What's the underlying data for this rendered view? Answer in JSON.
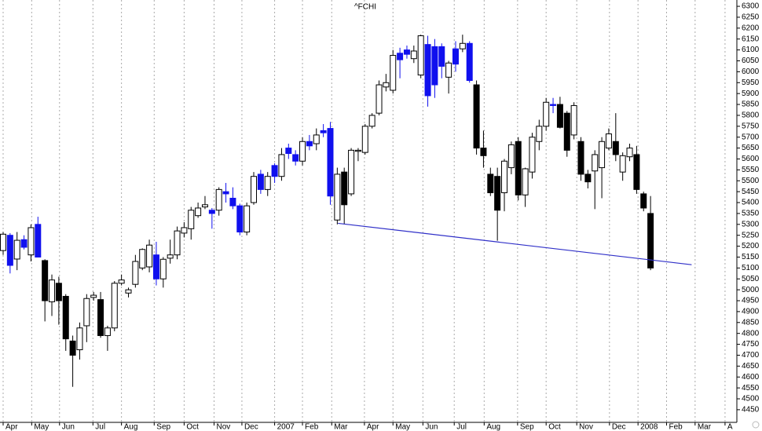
{
  "chart_data": {
    "type": "candlestick",
    "title": "^FCHI",
    "x": [
      0,
      1,
      2,
      3,
      4,
      5,
      6,
      7,
      8,
      9,
      10,
      11,
      12,
      13,
      14,
      15,
      16,
      17,
      18,
      19,
      20,
      21,
      22,
      23,
      24,
      25,
      26,
      27,
      28,
      29,
      30,
      31,
      32,
      33,
      34,
      35,
      36,
      37,
      38,
      39,
      40,
      41,
      42,
      43,
      44,
      45,
      46,
      47,
      48,
      49,
      50,
      51,
      52,
      53,
      54,
      55,
      56,
      57,
      58,
      59,
      60,
      61,
      62,
      63,
      64,
      65,
      66,
      67,
      68,
      69,
      70,
      71,
      72,
      73,
      74,
      75,
      76,
      77,
      78,
      79,
      80,
      81,
      82,
      83,
      84,
      85,
      86,
      87,
      88,
      89,
      90,
      91,
      92,
      93
    ],
    "open": [
      5180,
      5250,
      5141,
      5230,
      5160,
      5300,
      5134,
      4945,
      5030,
      4970,
      4765,
      4725,
      4835,
      4965,
      4955,
      4790,
      4825,
      5030,
      4985,
      5025,
      5100,
      5105,
      5160,
      5050,
      5145,
      5160,
      5260,
      5280,
      5340,
      5380,
      5365,
      5365,
      5450,
      5420,
      5385,
      5265,
      5400,
      5530,
      5460,
      5570,
      5520,
      5650,
      5620,
      5590,
      5680,
      5670,
      5730,
      5740,
      5320,
      5540,
      5440,
      5635,
      5630,
      5750,
      5810,
      5930,
      5915,
      6085,
      6100,
      6060,
      5985,
      6125,
      6115,
      6115,
      5975,
      6105,
      6105,
      6130,
      5940,
      5650,
      5530,
      5520,
      5445,
      5560,
      5680,
      5435,
      5540,
      5680,
      5750,
      5850,
      5850,
      5810,
      5710,
      5680,
      5530,
      5545,
      5560,
      5650,
      5680,
      5540,
      5610,
      5620,
      5440,
      5350
    ],
    "high": [
      5265,
      5260,
      5265,
      5250,
      5300,
      5335,
      5140,
      5070,
      5060,
      4980,
      4790,
      4850,
      4980,
      4990,
      4990,
      4835,
      5040,
      5070,
      5010,
      5160,
      5190,
      5230,
      5220,
      5150,
      5230,
      5290,
      5310,
      5380,
      5400,
      5430,
      5375,
      5470,
      5490,
      5470,
      5395,
      5400,
      5540,
      5550,
      5540,
      5580,
      5650,
      5670,
      5640,
      5700,
      5710,
      5740,
      5760,
      5770,
      5560,
      5560,
      5650,
      5650,
      5760,
      5810,
      5960,
      5990,
      6100,
      6110,
      6120,
      6120,
      6170,
      6165,
      6150,
      6130,
      6050,
      6140,
      6170,
      6140,
      5960,
      5730,
      5560,
      5560,
      5600,
      5680,
      5700,
      5560,
      5720,
      5780,
      5880,
      5880,
      5885,
      5820,
      5860,
      5700,
      5550,
      5640,
      5700,
      5740,
      5810,
      5630,
      5670,
      5660,
      5450,
      5430
    ],
    "low": [
      5160,
      5075,
      5090,
      5185,
      5130,
      5150,
      4855,
      4880,
      4840,
      4720,
      4555,
      4680,
      4760,
      4950,
      4780,
      4720,
      4810,
      5020,
      4965,
      5010,
      5090,
      5080,
      5020,
      5010,
      5120,
      5140,
      5240,
      5230,
      5330,
      5370,
      5280,
      5340,
      5400,
      5370,
      5250,
      5250,
      5390,
      5440,
      5430,
      5490,
      5500,
      5600,
      5570,
      5570,
      5640,
      5640,
      5700,
      5390,
      5300,
      5300,
      5430,
      5590,
      5620,
      5740,
      5800,
      5910,
      5900,
      5970,
      6060,
      6040,
      5970,
      5840,
      5880,
      5970,
      5900,
      6000,
      6090,
      5950,
      5620,
      5560,
      5430,
      5225,
      5360,
      5530,
      5410,
      5380,
      5510,
      5640,
      5730,
      5810,
      5740,
      5610,
      5690,
      5500,
      5465,
      5370,
      5420,
      5640,
      5590,
      5500,
      5590,
      5440,
      5360,
      5090
    ],
    "close": [
      5255,
      5112,
      5227,
      5195,
      5285,
      5150,
      4950,
      5045,
      4950,
      4775,
      4700,
      4825,
      4960,
      4975,
      4790,
      4825,
      5030,
      5045,
      5000,
      5130,
      5185,
      5205,
      5050,
      5140,
      5160,
      5270,
      5285,
      5365,
      5375,
      5390,
      5350,
      5460,
      5440,
      5385,
      5265,
      5385,
      5520,
      5460,
      5520,
      5520,
      5620,
      5625,
      5590,
      5680,
      5660,
      5710,
      5720,
      5430,
      5530,
      5390,
      5640,
      5640,
      5750,
      5800,
      5940,
      5950,
      6075,
      6055,
      6080,
      6095,
      6165,
      5890,
      5940,
      6025,
      6040,
      6035,
      6130,
      5960,
      5650,
      5615,
      5445,
      5365,
      5590,
      5665,
      5435,
      5555,
      5700,
      5750,
      5860,
      5845,
      5745,
      5640,
      5845,
      5530,
      5495,
      5620,
      5680,
      5715,
      5620,
      5615,
      5650,
      5460,
      5375,
      5100
    ],
    "fills": [
      "#ffffff",
      "#1010ee",
      "#ffffff",
      "#1010ee",
      "#ffffff",
      "#1010ee",
      "#000000",
      "#ffffff",
      "#000000",
      "#000000",
      "#000000",
      "#ffffff",
      "#ffffff",
      "#ffffff",
      "#000000",
      "#ffffff",
      "#ffffff",
      "#ffffff",
      "#ffffff",
      "#ffffff",
      "#ffffff",
      "#ffffff",
      "#1010ee",
      "#ffffff",
      "#ffffff",
      "#ffffff",
      "#ffffff",
      "#ffffff",
      "#ffffff",
      "#ffffff",
      "#1010ee",
      "#ffffff",
      "#1010ee",
      "#1010ee",
      "#1010ee",
      "#ffffff",
      "#ffffff",
      "#1010ee",
      "#ffffff",
      "#1010ee",
      "#ffffff",
      "#1010ee",
      "#1010ee",
      "#ffffff",
      "#1010ee",
      "#ffffff",
      "#1010ee",
      "#1010ee",
      "#ffffff",
      "#000000",
      "#ffffff",
      "#ffffff",
      "#ffffff",
      "#ffffff",
      "#ffffff",
      "#ffffff",
      "#ffffff",
      "#1010ee",
      "#1010ee",
      "#ffffff",
      "#ffffff",
      "#1010ee",
      "#1010ee",
      "#1010ee",
      "#ffffff",
      "#1010ee",
      "#ffffff",
      "#1010ee",
      "#000000",
      "#000000",
      "#000000",
      "#000000",
      "#ffffff",
      "#ffffff",
      "#000000",
      "#ffffff",
      "#ffffff",
      "#ffffff",
      "#ffffff",
      "#1010ee",
      "#000000",
      "#000000",
      "#ffffff",
      "#000000",
      "#000000",
      "#ffffff",
      "#ffffff",
      "#ffffff",
      "#000000",
      "#ffffff",
      "#ffffff",
      "#000000",
      "#000000",
      "#000000"
    ],
    "trendline": {
      "x": [
        48.1,
        98.9
      ],
      "values": [
        5305,
        5115
      ],
      "color": "#3030c8"
    },
    "xlim": [
      -0.45,
      105.4
    ],
    "xticks": [
      {
        "value": 0,
        "label": "Apr"
      },
      {
        "value": 4.1,
        "label": "May"
      },
      {
        "value": 8.1,
        "label": "Jun"
      },
      {
        "value": 12.9,
        "label": "Jul"
      },
      {
        "value": 17,
        "label": "Aug"
      },
      {
        "value": 21.7,
        "label": "Sep"
      },
      {
        "value": 26,
        "label": "Oct"
      },
      {
        "value": 30.3,
        "label": "Nov"
      },
      {
        "value": 34.3,
        "label": "Dec"
      },
      {
        "value": 39,
        "label": "2007"
      },
      {
        "value": 43,
        "label": "Feb"
      },
      {
        "value": 47.2,
        "label": "Mar"
      },
      {
        "value": 51.9,
        "label": "Apr"
      },
      {
        "value": 56,
        "label": "May"
      },
      {
        "value": 60.3,
        "label": "Jun"
      },
      {
        "value": 64.8,
        "label": "Jul"
      },
      {
        "value": 69.1,
        "label": "Aug"
      },
      {
        "value": 73.9,
        "label": "Sep"
      },
      {
        "value": 78,
        "label": "Oct"
      },
      {
        "value": 82.4,
        "label": "Nov"
      },
      {
        "value": 87.1,
        "label": "Dec"
      },
      {
        "value": 91.2,
        "label": "2008"
      },
      {
        "value": 95.3,
        "label": "Feb"
      },
      {
        "value": 99.4,
        "label": "Mar"
      },
      {
        "value": 103.7,
        "label": "A"
      }
    ],
    "ylim": [
      4392,
      6329
    ],
    "yticks": [
      4450,
      4500,
      4550,
      4600,
      4650,
      4700,
      4750,
      4800,
      4850,
      4900,
      4950,
      5000,
      5050,
      5100,
      5150,
      5200,
      5250,
      5300,
      5350,
      5400,
      5450,
      5500,
      5550,
      5600,
      5650,
      5700,
      5750,
      5800,
      5850,
      5900,
      5950,
      6000,
      6050,
      6100,
      6150,
      6200,
      6250,
      6300
    ],
    "grid": true
  }
}
